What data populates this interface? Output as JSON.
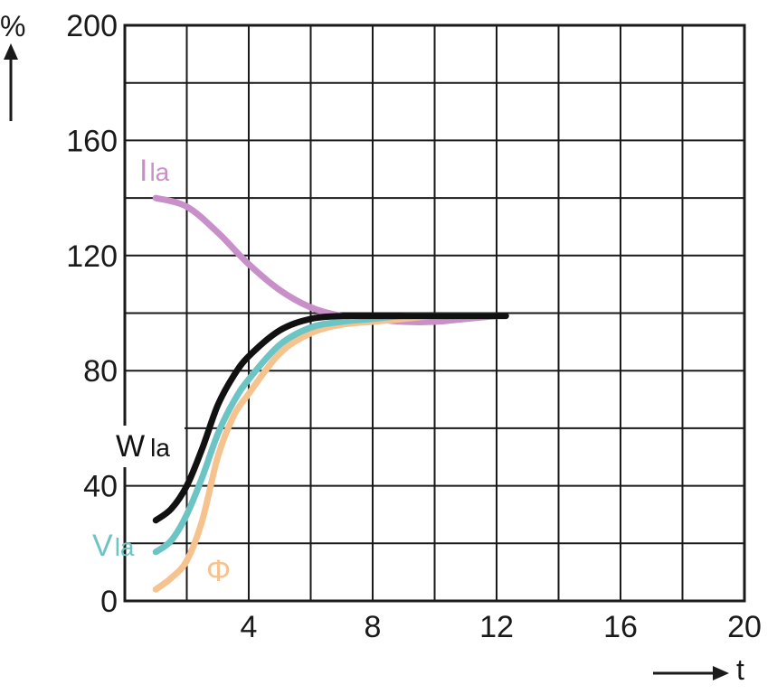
{
  "chart_data": {
    "type": "line",
    "xlabel": "t",
    "ylabel": "%",
    "xlim": [
      0,
      20
    ],
    "ylim": [
      0,
      200
    ],
    "x_ticks": [
      4,
      8,
      12,
      16,
      20
    ],
    "y_ticks": [
      0,
      40,
      80,
      120,
      160,
      200
    ],
    "x_minor_step": 2,
    "y_minor_step": 20,
    "grid": true,
    "series": [
      {
        "name": "I",
        "subscript": "la",
        "color": "#c98fc8",
        "x": [
          1,
          2,
          3,
          4,
          5,
          6,
          7,
          8,
          9,
          10,
          11,
          12
        ],
        "values": [
          140,
          137,
          128,
          117,
          108,
          102,
          99,
          98,
          97,
          97,
          98,
          99
        ]
      },
      {
        "name": "W",
        "subscript": "la",
        "color": "#111111",
        "x": [
          1,
          1.5,
          2,
          2.5,
          3,
          3.5,
          4,
          5,
          6,
          7,
          8,
          9,
          10,
          11,
          12.3
        ],
        "values": [
          28,
          32,
          40,
          53,
          68,
          78,
          85,
          94,
          98,
          99,
          99,
          99,
          99,
          99,
          99
        ]
      },
      {
        "name": "V",
        "subscript": "la",
        "color": "#6cc4c4",
        "x": [
          1,
          1.5,
          2,
          2.5,
          3,
          3.5,
          4,
          5,
          6,
          7,
          8,
          9,
          10,
          11,
          12
        ],
        "values": [
          17,
          21,
          30,
          43,
          58,
          69,
          77,
          89,
          95,
          97,
          98,
          99,
          99,
          99,
          99
        ]
      },
      {
        "name": "Φ",
        "subscript": "",
        "color": "#f6c38f",
        "x": [
          1,
          1.5,
          2,
          2.5,
          3,
          3.5,
          4,
          5,
          6,
          7,
          8,
          9,
          10,
          11,
          12
        ],
        "values": [
          4,
          8,
          14,
          28,
          50,
          64,
          72,
          86,
          93,
          96,
          97,
          98,
          99,
          99,
          99
        ]
      }
    ]
  }
}
